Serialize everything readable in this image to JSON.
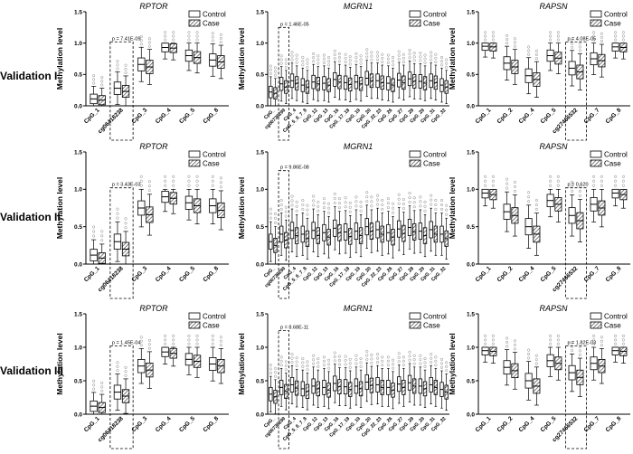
{
  "figure": {
    "row_labels": [
      "Validation I",
      "Validation II",
      "Validation III"
    ],
    "legend": {
      "control": "Control",
      "case": "Case"
    },
    "y_axis_label": "Methylation level",
    "y_ticks": [
      "0.0",
      "0.5",
      "1.0",
      "1.5"
    ]
  },
  "chart_data": [
    {
      "type": "box",
      "id": "p00",
      "row": "Validation I",
      "title": "RPTOR",
      "ylabel": "Methylation level",
      "ylim": [
        0,
        1.5
      ],
      "categories": [
        "CpG_1",
        "cg06418238",
        "CpG_3",
        "CpG_4",
        "CpG_5",
        "CpG_8"
      ],
      "series": [
        {
          "name": "Control",
          "medians": [
            0.11,
            0.28,
            0.66,
            0.93,
            0.8,
            0.73
          ]
        },
        {
          "name": "Case",
          "medians": [
            0.09,
            0.23,
            0.62,
            0.92,
            0.77,
            0.7
          ]
        }
      ],
      "annotation": {
        "text": "p = 7.41E-09",
        "category": "cg06418238"
      }
    },
    {
      "type": "box",
      "id": "p01",
      "row": "Validation I",
      "title": "MGRN1",
      "ylabel": "Methylation level",
      "ylim": [
        0,
        1.5
      ],
      "categories": [
        "CpG_",
        "cg00736299",
        "CpG_4",
        "CpG_5_6_7_8",
        "CpG_12",
        "CpG_13",
        "CpG_16",
        "CpG_17_18",
        "CpG_19",
        "CpG_20",
        "CpG_22_23",
        "CpG_26",
        "CpG_27",
        "CpG_28",
        "CpG_29",
        "CpG_31",
        "CpG_32"
      ],
      "series": [
        {
          "name": "Control",
          "medians": [
            0.22,
            0.35,
            0.4,
            0.33,
            0.38,
            0.36,
            0.42,
            0.37,
            0.38,
            0.44,
            0.4,
            0.36,
            0.41,
            0.43,
            0.39,
            0.4,
            0.33
          ]
        },
        {
          "name": "Case",
          "medians": [
            0.2,
            0.3,
            0.36,
            0.3,
            0.35,
            0.33,
            0.38,
            0.34,
            0.35,
            0.4,
            0.37,
            0.33,
            0.37,
            0.39,
            0.36,
            0.37,
            0.3
          ]
        }
      ],
      "annotation": {
        "text": "p = 1.46E-05",
        "category": "cg00736299"
      }
    },
    {
      "type": "box",
      "id": "p02",
      "row": "Validation I",
      "title": "RAPSN",
      "ylabel": "Methylation level",
      "ylim": [
        0,
        1.5
      ],
      "categories": [
        "CpG_1",
        "CpG_2",
        "CpG_4",
        "CpG_5",
        "cg27466532",
        "CpG_7",
        "CpG_8"
      ],
      "series": [
        {
          "name": "Control",
          "medians": [
            0.95,
            0.68,
            0.48,
            0.8,
            0.6,
            0.75,
            0.94
          ]
        },
        {
          "name": "Case",
          "medians": [
            0.94,
            0.62,
            0.42,
            0.76,
            0.54,
            0.72,
            0.93
          ]
        }
      ],
      "annotation": {
        "text": "p = 4.08E-05",
        "category": "cg27466532"
      }
    },
    {
      "type": "box",
      "id": "p10",
      "row": "Validation II",
      "title": "RPTOR",
      "ylabel": "Methylation level",
      "ylim": [
        0,
        1.5
      ],
      "categories": [
        "CpG_1",
        "cg06418238",
        "CpG_3",
        "CpG_4",
        "CpG_5",
        "CpG_8"
      ],
      "series": [
        {
          "name": "Control",
          "medians": [
            0.12,
            0.3,
            0.75,
            0.9,
            0.82,
            0.78
          ]
        },
        {
          "name": "Case",
          "medians": [
            0.08,
            0.2,
            0.66,
            0.88,
            0.78,
            0.72
          ]
        }
      ],
      "annotation": {
        "text": "p = 3.43E-03",
        "category": "cg06418238"
      }
    },
    {
      "type": "box",
      "id": "p11",
      "row": "Validation II",
      "title": "MGRN1",
      "ylabel": "Methylation level",
      "ylim": [
        0,
        1.5
      ],
      "categories": [
        "CpG_",
        "cg00736299",
        "CpG_4",
        "CpG_5_6_7_8",
        "CpG_12",
        "CpG_13",
        "CpG_16",
        "CpG_17_18",
        "CpG_19",
        "CpG_20",
        "CpG_22_23",
        "CpG_26",
        "CpG_27",
        "CpG_28",
        "CpG_29",
        "CpG_31",
        "CpG_32"
      ],
      "series": [
        {
          "name": "Control",
          "medians": [
            0.3,
            0.4,
            0.45,
            0.4,
            0.45,
            0.42,
            0.48,
            0.43,
            0.44,
            0.5,
            0.46,
            0.42,
            0.47,
            0.49,
            0.44,
            0.46,
            0.4
          ]
        },
        {
          "name": "Case",
          "medians": [
            0.25,
            0.32,
            0.38,
            0.34,
            0.38,
            0.36,
            0.42,
            0.37,
            0.38,
            0.44,
            0.4,
            0.36,
            0.41,
            0.43,
            0.38,
            0.4,
            0.34
          ]
        }
      ],
      "annotation": {
        "text": "p = 9.86E-08",
        "category": "cg00736299"
      }
    },
    {
      "type": "box",
      "id": "p12",
      "row": "Validation II",
      "title": "RAPSN",
      "ylabel": "Methylation level",
      "ylim": [
        0,
        1.5
      ],
      "categories": [
        "CpG_1",
        "CpG_2",
        "CpG_4",
        "CpG_5",
        "cg27466532",
        "CpG_7",
        "CpG_8"
      ],
      "series": [
        {
          "name": "Control",
          "medians": [
            0.95,
            0.7,
            0.5,
            0.85,
            0.65,
            0.8,
            0.95
          ]
        },
        {
          "name": "Case",
          "medians": [
            0.93,
            0.65,
            0.4,
            0.8,
            0.58,
            0.75,
            0.93
          ]
        }
      ],
      "annotation": {
        "text": "p = 0.620",
        "category": "cg27466532"
      }
    },
    {
      "type": "box",
      "id": "p20",
      "row": "Validation III",
      "title": "RPTOR",
      "ylabel": "Methylation level",
      "ylim": [
        0,
        1.5
      ],
      "categories": [
        "CpG_1",
        "cg06418238",
        "CpG_3",
        "CpG_4",
        "CpG_5",
        "CpG_8"
      ],
      "series": [
        {
          "name": "Control",
          "medians": [
            0.12,
            0.33,
            0.72,
            0.93,
            0.82,
            0.75
          ]
        },
        {
          "name": "Case",
          "medians": [
            0.1,
            0.27,
            0.66,
            0.91,
            0.79,
            0.72
          ]
        }
      ],
      "annotation": {
        "text": "p = 1.45E-04",
        "category": "cg06418238"
      }
    },
    {
      "type": "box",
      "id": "p21",
      "row": "Validation III",
      "title": "MGRN1",
      "ylabel": "Methylation level",
      "ylim": [
        0,
        1.5
      ],
      "categories": [
        "CpG_",
        "cg00736299",
        "CpG_4",
        "CpG_5_6_7_8",
        "CpG_12",
        "CpG_13",
        "CpG_16",
        "CpG_17_18",
        "CpG_19",
        "CpG_20",
        "CpG_22_23",
        "CpG_26",
        "CpG_27",
        "CpG_28",
        "CpG_29",
        "CpG_31",
        "CpG_32"
      ],
      "series": [
        {
          "name": "Control",
          "medians": [
            0.3,
            0.4,
            0.44,
            0.38,
            0.42,
            0.4,
            0.46,
            0.41,
            0.42,
            0.48,
            0.44,
            0.4,
            0.45,
            0.47,
            0.42,
            0.44,
            0.37
          ]
        },
        {
          "name": "Case",
          "medians": [
            0.26,
            0.34,
            0.39,
            0.34,
            0.38,
            0.36,
            0.41,
            0.37,
            0.38,
            0.43,
            0.4,
            0.36,
            0.4,
            0.42,
            0.38,
            0.4,
            0.33
          ]
        }
      ],
      "annotation": {
        "text": "p = 8.68E-11",
        "category": "cg00736299"
      }
    },
    {
      "type": "box",
      "id": "p22",
      "row": "Validation III",
      "title": "RAPSN",
      "ylabel": "Methylation level",
      "ylim": [
        0,
        1.5
      ],
      "categories": [
        "CpG_1",
        "CpG_2",
        "CpG_4",
        "CpG_5",
        "cg27466532",
        "CpG_7",
        "CpG_8"
      ],
      "series": [
        {
          "name": "Control",
          "medians": [
            0.95,
            0.7,
            0.5,
            0.8,
            0.62,
            0.76,
            0.95
          ]
        },
        {
          "name": "Case",
          "medians": [
            0.94,
            0.65,
            0.42,
            0.76,
            0.55,
            0.72,
            0.94
          ]
        }
      ],
      "annotation": {
        "text": "p = 1.82E-03",
        "category": "cg27466532"
      }
    }
  ]
}
